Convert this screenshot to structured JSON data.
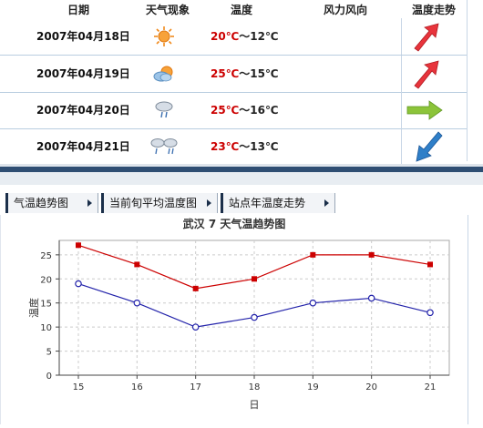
{
  "table": {
    "headers": {
      "date": "日期",
      "weather": "天气现象",
      "temp": "温度",
      "wind": "风力风向",
      "trend": "温度走势"
    },
    "rows": [
      {
        "date": "2007年04月18日",
        "icon": "sunny-icon",
        "high": "20℃",
        "sep": "～",
        "low": "12℃",
        "trend": "up-arrow"
      },
      {
        "date": "2007年04月19日",
        "icon": "partly-cloudy-icon",
        "high": "25℃",
        "sep": "～",
        "low": "15℃",
        "trend": "up-arrow"
      },
      {
        "date": "2007年04月20日",
        "icon": "rain-icon",
        "high": "25℃",
        "sep": "～",
        "low": "16℃",
        "trend": "right-arrow"
      },
      {
        "date": "2007年04月21日",
        "icon": "showers-icon",
        "high": "23℃",
        "sep": "～",
        "low": "13℃",
        "trend": "down-arrow"
      }
    ]
  },
  "tabs": [
    {
      "label": "气温趋势图"
    },
    {
      "label": "当前旬平均温度图"
    },
    {
      "label": "站点年温度走势"
    }
  ],
  "colors": {
    "high": "#cc0000",
    "low": "#2222aa",
    "up": "#e8343c",
    "flat": "#8cc43a",
    "down": "#2f7fc8"
  },
  "chart_data": {
    "type": "line",
    "title": "武汉 7 天气温趋势图",
    "xlabel": "日",
    "ylabel": "温度",
    "x": [
      15,
      16,
      17,
      18,
      19,
      20,
      21
    ],
    "ylim": [
      0,
      28
    ],
    "yticks": [
      0,
      5,
      10,
      15,
      20,
      25
    ],
    "grid": true,
    "series": [
      {
        "values": [
          27,
          23,
          18,
          20,
          25,
          25,
          23
        ],
        "color": "#cc0000",
        "marker": "square"
      },
      {
        "values": [
          19,
          15,
          10,
          12,
          15,
          16,
          13
        ],
        "color": "#2222aa",
        "marker": "circle"
      }
    ]
  }
}
